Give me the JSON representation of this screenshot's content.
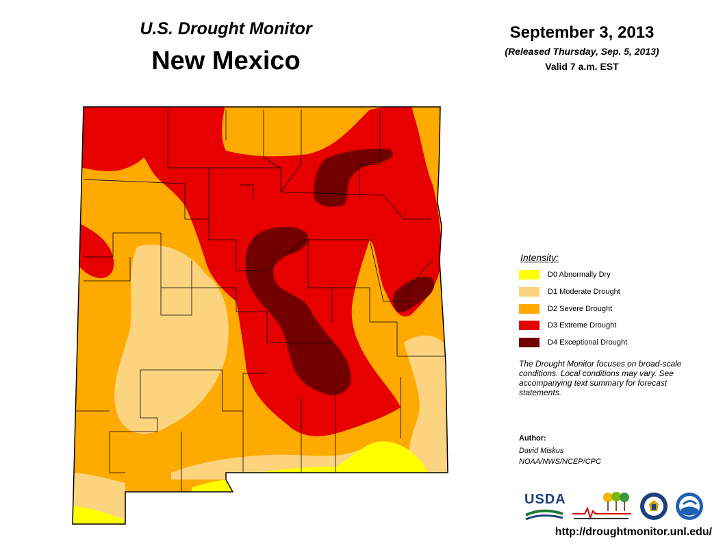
{
  "header": {
    "product_title": "U.S. Drought Monitor",
    "state_name": "New Mexico",
    "map_date": "September 3, 2013",
    "release_line": "(Released Thursday, Sep. 5, 2013)",
    "valid_line": "Valid 7 a.m. EST"
  },
  "legend": {
    "title": "Intensity:",
    "items": [
      {
        "code": "D0",
        "label": "D0 Abnormally Dry",
        "color": "#ffff00"
      },
      {
        "code": "D1",
        "label": "D1 Moderate Drought",
        "color": "#fcd37f"
      },
      {
        "code": "D2",
        "label": "D2 Severe Drought",
        "color": "#ffaa00"
      },
      {
        "code": "D3",
        "label": "D3 Extreme Drought",
        "color": "#e60000"
      },
      {
        "code": "D4",
        "label": "D4 Exceptional Drought",
        "color": "#730000"
      }
    ]
  },
  "note": "The Drought Monitor focuses on broad-scale conditions. Local conditions may vary. See accompanying text summary for forecast statements.",
  "author": {
    "label": "Author:",
    "name": "David Miskus",
    "org": "NOAA/NWS/NCEP/CPC"
  },
  "logos": {
    "usda": "USDA",
    "ndmc_icon": "ndmc-logo",
    "commerce_icon": "commerce-seal",
    "noaa_icon": "noaa-logo"
  },
  "url": "http://droughtmonitor.unl.edu/"
}
